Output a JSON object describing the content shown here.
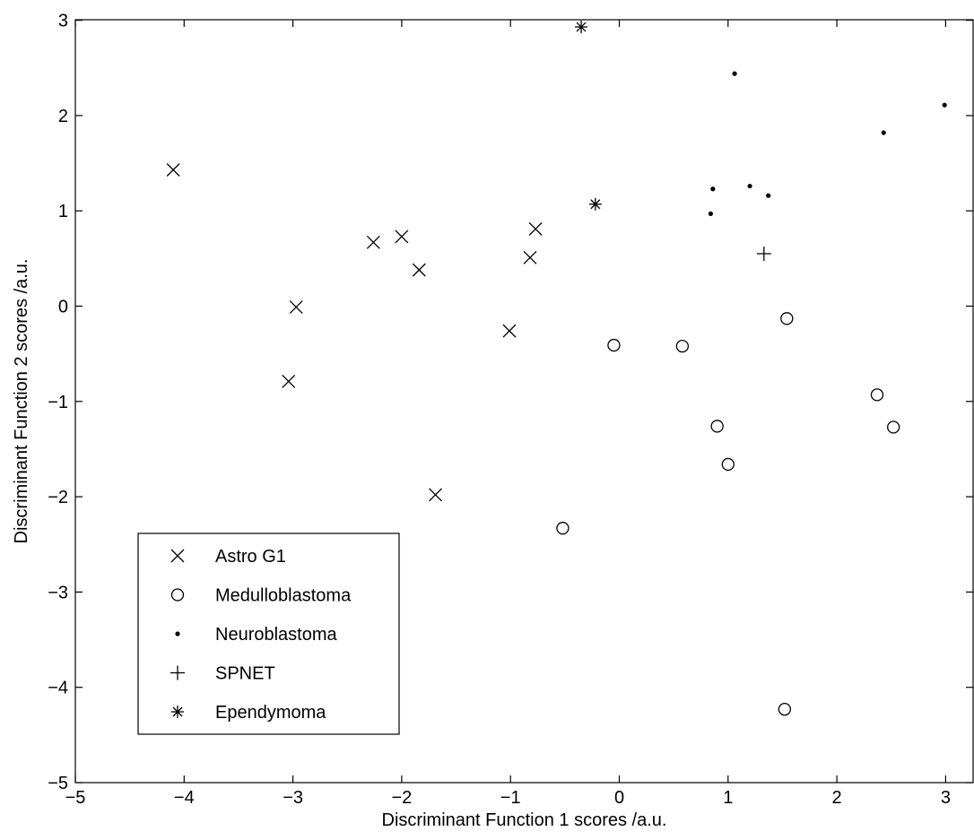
{
  "chart_data": {
    "type": "scatter",
    "title": "",
    "xlabel": "Discriminant Function 1 scores /a.u.",
    "ylabel": "Discriminant Function 2 scores /a.u.",
    "xlim": [
      -5,
      3.25
    ],
    "ylim": [
      -5,
      3
    ],
    "xticks": [
      -5,
      -4,
      -3,
      -2,
      -1,
      0,
      1,
      2,
      3
    ],
    "yticks": [
      -5,
      -4,
      -3,
      -2,
      -1,
      0,
      1,
      2,
      3
    ],
    "xtick_labels": [
      "−5",
      "−4",
      "−3",
      "−2",
      "−1",
      "0",
      "1",
      "2",
      "3"
    ],
    "ytick_labels": [
      "−5",
      "−4",
      "−3",
      "−2",
      "−1",
      "0",
      "1",
      "2",
      "3"
    ],
    "grid": false,
    "legend_position": "bottom-left",
    "series": [
      {
        "name": "Astro G1",
        "marker": "x",
        "points": [
          [
            -4.1,
            1.43
          ],
          [
            -3.04,
            -0.79
          ],
          [
            -2.97,
            -0.01
          ],
          [
            -2.26,
            0.67
          ],
          [
            -2.0,
            0.73
          ],
          [
            -1.84,
            0.38
          ],
          [
            -1.69,
            -1.98
          ],
          [
            -1.01,
            -0.26
          ],
          [
            -0.82,
            0.51
          ],
          [
            -0.77,
            0.81
          ]
        ]
      },
      {
        "name": "Medulloblastoma",
        "marker": "circle",
        "points": [
          [
            -0.52,
            -2.33
          ],
          [
            -0.05,
            -0.41
          ],
          [
            0.58,
            -0.42
          ],
          [
            0.9,
            -1.26
          ],
          [
            1.0,
            -1.66
          ],
          [
            1.52,
            -4.23
          ],
          [
            1.54,
            -0.13
          ],
          [
            2.37,
            -0.93
          ],
          [
            2.52,
            -1.27
          ]
        ]
      },
      {
        "name": "Neuroblastoma",
        "marker": "dot",
        "points": [
          [
            0.84,
            0.97
          ],
          [
            0.86,
            1.23
          ],
          [
            1.06,
            2.44
          ],
          [
            1.2,
            1.26
          ],
          [
            1.37,
            1.16
          ],
          [
            2.43,
            1.82
          ],
          [
            2.99,
            2.11
          ]
        ]
      },
      {
        "name": "SPNET",
        "marker": "plus",
        "points": [
          [
            1.33,
            0.55
          ]
        ]
      },
      {
        "name": "Ependymoma",
        "marker": "star",
        "points": [
          [
            -0.35,
            2.93
          ],
          [
            -0.22,
            1.07
          ]
        ]
      }
    ]
  }
}
